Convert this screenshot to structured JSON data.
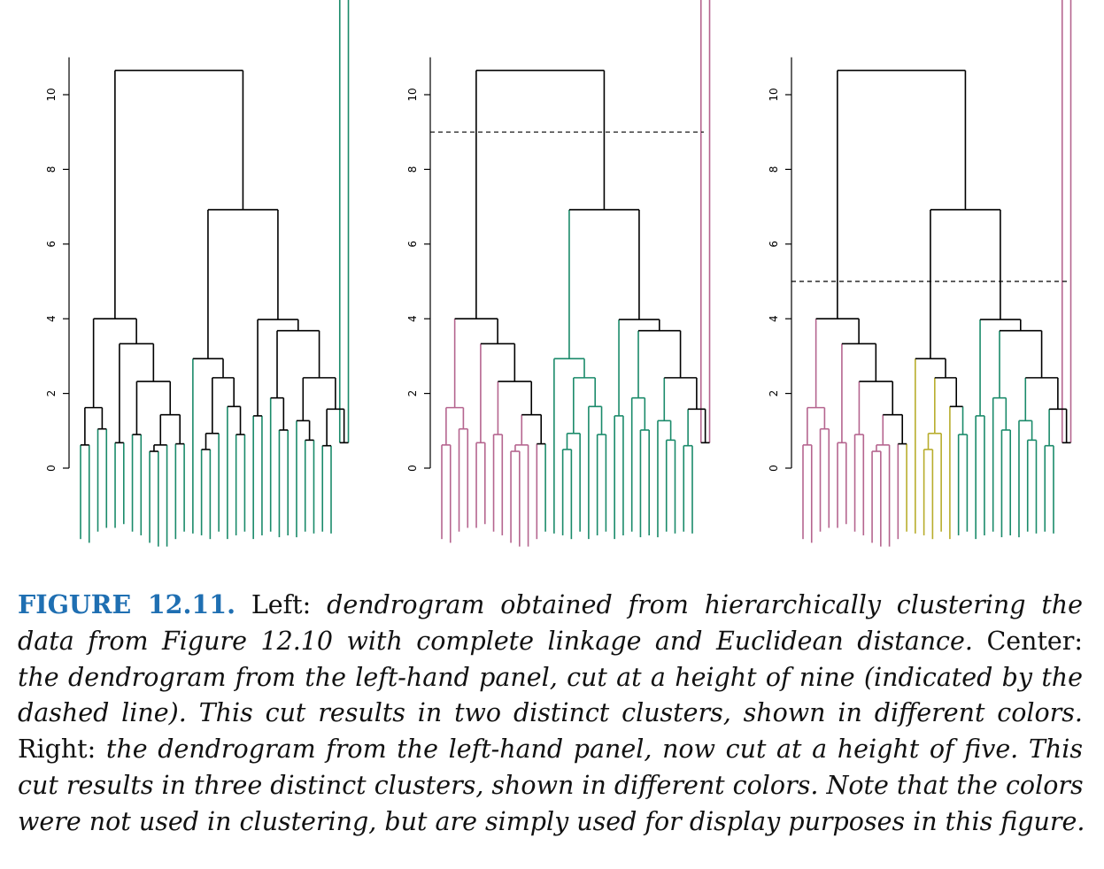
{
  "chart_data": [
    {
      "type": "dendrogram",
      "panel": "Left",
      "ylim": [
        0,
        11
      ],
      "y_ticks": [
        "0",
        "2",
        "4",
        "6",
        "8",
        "10"
      ],
      "cut_height": null,
      "cluster_colors": [
        "#1a8a6a"
      ]
    },
    {
      "type": "dendrogram",
      "panel": "Center",
      "ylim": [
        0,
        11
      ],
      "y_ticks": [
        "0",
        "2",
        "4",
        "6",
        "8",
        "10"
      ],
      "cut_height": 9,
      "cluster_colors": [
        "#b5658f",
        "#1a8a6a"
      ]
    },
    {
      "type": "dendrogram",
      "panel": "Right",
      "ylim": [
        0,
        11
      ],
      "y_ticks": [
        "0",
        "2",
        "4",
        "6",
        "8",
        "10"
      ],
      "cut_height": 5,
      "cluster_colors": [
        "#b5658f",
        "#b8ad2c",
        "#1a8a6a"
      ]
    }
  ],
  "caption": {
    "label": "FIGURE 12.11.",
    "left_word": "Left:",
    "l1_it": "dendrogram obtained from hierarchically clustering the",
    "l2_it": "data from Figure 12.10 with complete linkage and Euclidean distance.",
    "center_word": "Center:",
    "l3_it": "the dendrogram from the left-hand panel, cut at a height of nine (indicated by the",
    "l4_it": "dashed line). This cut results in two distinct clusters, shown in different colors.",
    "right_word": "Right:",
    "l5_it": "the dendrogram from the left-hand panel, now cut at a height of five. This",
    "l6_it": "cut results in three distinct clusters, shown in different colors. Note that the colors",
    "l7_it": "were not used in clustering, but are simply used for display purposes in this figure."
  }
}
